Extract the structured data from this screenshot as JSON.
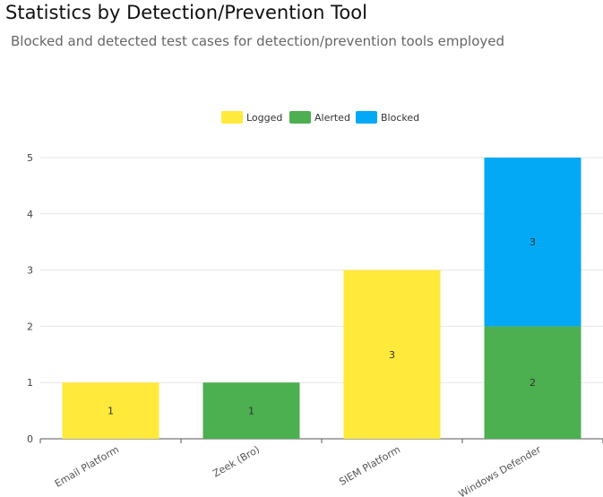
{
  "header": {
    "title": "Statistics by Detection/Prevention Tool",
    "subtitle": "Blocked and detected test cases for detection/prevention tools employed"
  },
  "chart_data": {
    "type": "bar",
    "stacked": true,
    "categories": [
      "Email Platform",
      "Zeek (Bro)",
      "SIEM Platform",
      "Windows Defender"
    ],
    "series": [
      {
        "name": "Logged",
        "color": "#ffe93b",
        "values": [
          1,
          0,
          3,
          0
        ]
      },
      {
        "name": "Alerted",
        "color": "#4caf50",
        "values": [
          0,
          1,
          0,
          2
        ]
      },
      {
        "name": "Blocked",
        "color": "#03a9f4",
        "values": [
          0,
          0,
          0,
          3
        ]
      }
    ],
    "ylim": [
      0,
      5
    ],
    "yticks": [
      0,
      1,
      2,
      3,
      4,
      5
    ],
    "grid": true,
    "legend": "top-center",
    "data_labels": true
  }
}
